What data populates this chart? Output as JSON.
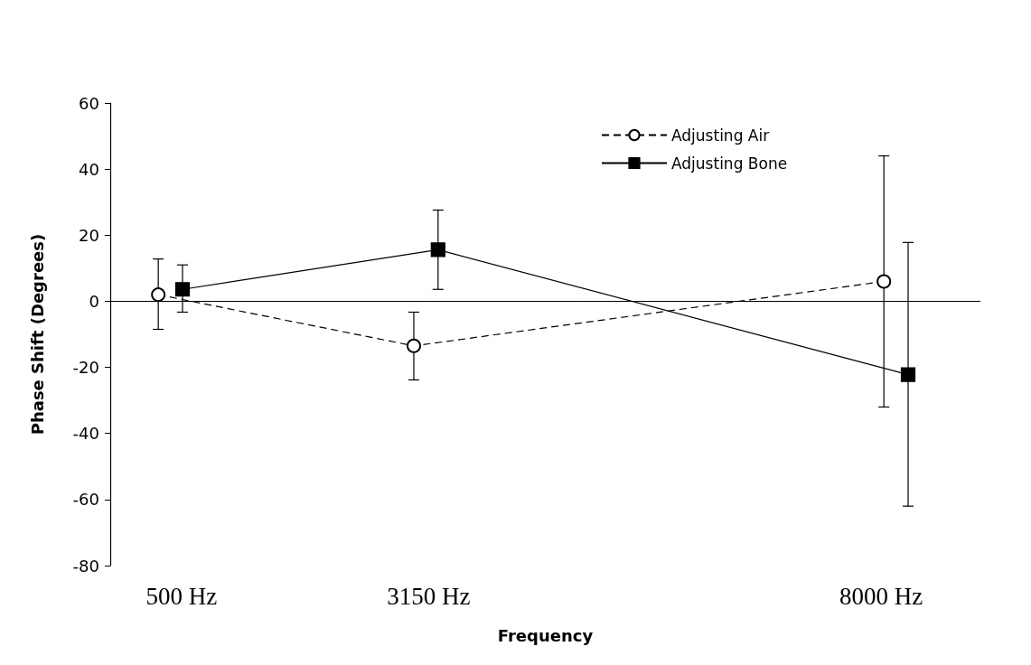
{
  "chart_data": {
    "type": "line",
    "xlabel": "Frequency",
    "ylabel": "Phase Shift (Degrees)",
    "xlim": [
      -265,
      9065
    ],
    "xticks": [
      {
        "value": 500,
        "label": "500 Hz"
      },
      {
        "value": 3150,
        "label": "3150 Hz"
      },
      {
        "value": 8000,
        "label": "8000 Hz"
      }
    ],
    "ylim": [
      -80,
      60
    ],
    "yticks": [
      -80,
      -60,
      -40,
      -20,
      0,
      20,
      40,
      60
    ],
    "series": [
      {
        "name": "Adjusting Air",
        "color": "#000000",
        "marker": "circle",
        "line_style": "dashed",
        "x": [
          250,
          2990,
          8030
        ],
        "values": [
          2,
          -13.5,
          6
        ],
        "errors": [
          [
            -8.5,
            12.8
          ],
          [
            -23.8,
            -3.3
          ],
          [
            -32,
            44
          ]
        ]
      },
      {
        "name": "Adjusting Bone",
        "color": "#000000",
        "marker": "square",
        "line_style": "solid",
        "x": [
          510,
          3250,
          8290
        ],
        "values": [
          3.6,
          15.6,
          -22.2
        ],
        "errors": [
          [
            -3.3,
            11
          ],
          [
            3.6,
            27.6
          ],
          [
            -62,
            17.8
          ]
        ]
      }
    ],
    "ref_lines": [
      {
        "axis": "y",
        "value": 0,
        "color": "#000000"
      }
    ],
    "grid": false,
    "legend": "top right"
  }
}
